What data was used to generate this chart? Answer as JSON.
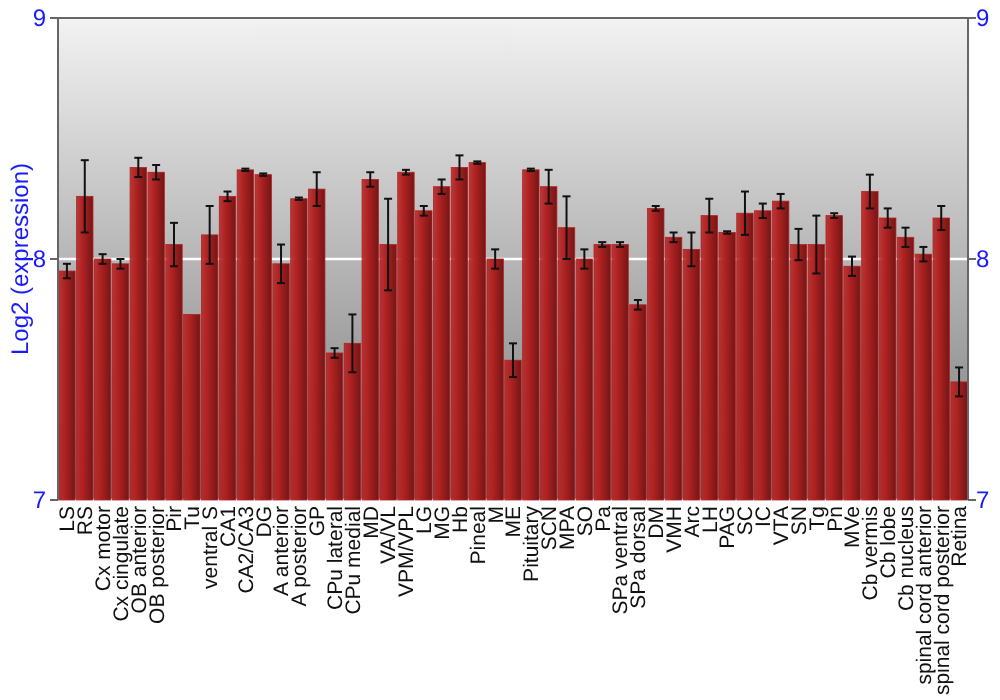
{
  "chart_data": {
    "type": "bar",
    "ylabel": "Log2 (expression)",
    "categories": [
      "LS",
      "RS",
      "Cx motor",
      "Cx cingulate",
      "OB anterior",
      "OB posterior",
      "Pir",
      "Tu",
      "ventral S",
      "CA1",
      "CA2/CA3",
      "DG",
      "A anterior",
      "A posterior",
      "GP",
      "CPu lateral",
      "CPu medial",
      "MD",
      "VA/VL",
      "VPM/VPL",
      "LG",
      "MG",
      "Hb",
      "Pineal",
      "M",
      "ME",
      "Pituitary",
      "SCN",
      "MPA",
      "SO",
      "Pa",
      "SPa ventral",
      "SPa dorsal",
      "DM",
      "VMH",
      "Arc",
      "LH",
      "PAG",
      "SC",
      "IC",
      "VTA",
      "SN",
      "Tg",
      "Pn",
      "MVe",
      "Cb vermis",
      "Cb lobe",
      "Cb nucleus",
      "spinal cord anterior",
      "spinal cord posterior",
      "Retina"
    ],
    "values": [
      7.95,
      8.26,
      8.0,
      7.98,
      8.38,
      8.36,
      8.06,
      7.77,
      8.1,
      8.26,
      8.37,
      8.35,
      7.98,
      8.25,
      8.29,
      7.61,
      7.65,
      8.33,
      8.06,
      8.36,
      8.2,
      8.3,
      8.38,
      8.4,
      8.0,
      7.58,
      8.37,
      8.3,
      8.13,
      8.0,
      8.06,
      8.06,
      7.81,
      8.21,
      8.09,
      8.04,
      8.18,
      8.11,
      8.19,
      8.2,
      8.24,
      8.06,
      8.06,
      8.18,
      7.97,
      8.28,
      8.17,
      8.09,
      8.02,
      8.17,
      7.49
    ],
    "errors": [
      0.03,
      0.15,
      0.02,
      0.02,
      0.04,
      0.03,
      0.09,
      null,
      0.12,
      0.02,
      0.005,
      0.005,
      0.08,
      0.005,
      0.07,
      0.02,
      0.12,
      0.03,
      0.19,
      0.01,
      0.02,
      0.03,
      0.05,
      0.005,
      0.04,
      0.07,
      0.005,
      0.07,
      0.13,
      0.04,
      0.01,
      0.01,
      0.02,
      0.01,
      0.02,
      0.07,
      0.07,
      0.005,
      0.09,
      0.03,
      0.03,
      0.065,
      0.12,
      0.01,
      0.04,
      0.07,
      0.04,
      0.04,
      0.03,
      0.05,
      0.06
    ],
    "color": "#b22222",
    "ylim": [
      7,
      9
    ],
    "yticks": [
      7,
      8,
      9
    ],
    "y2lim": [
      7,
      9
    ],
    "y2ticks": [
      7,
      8,
      9
    ],
    "grid": "y"
  }
}
